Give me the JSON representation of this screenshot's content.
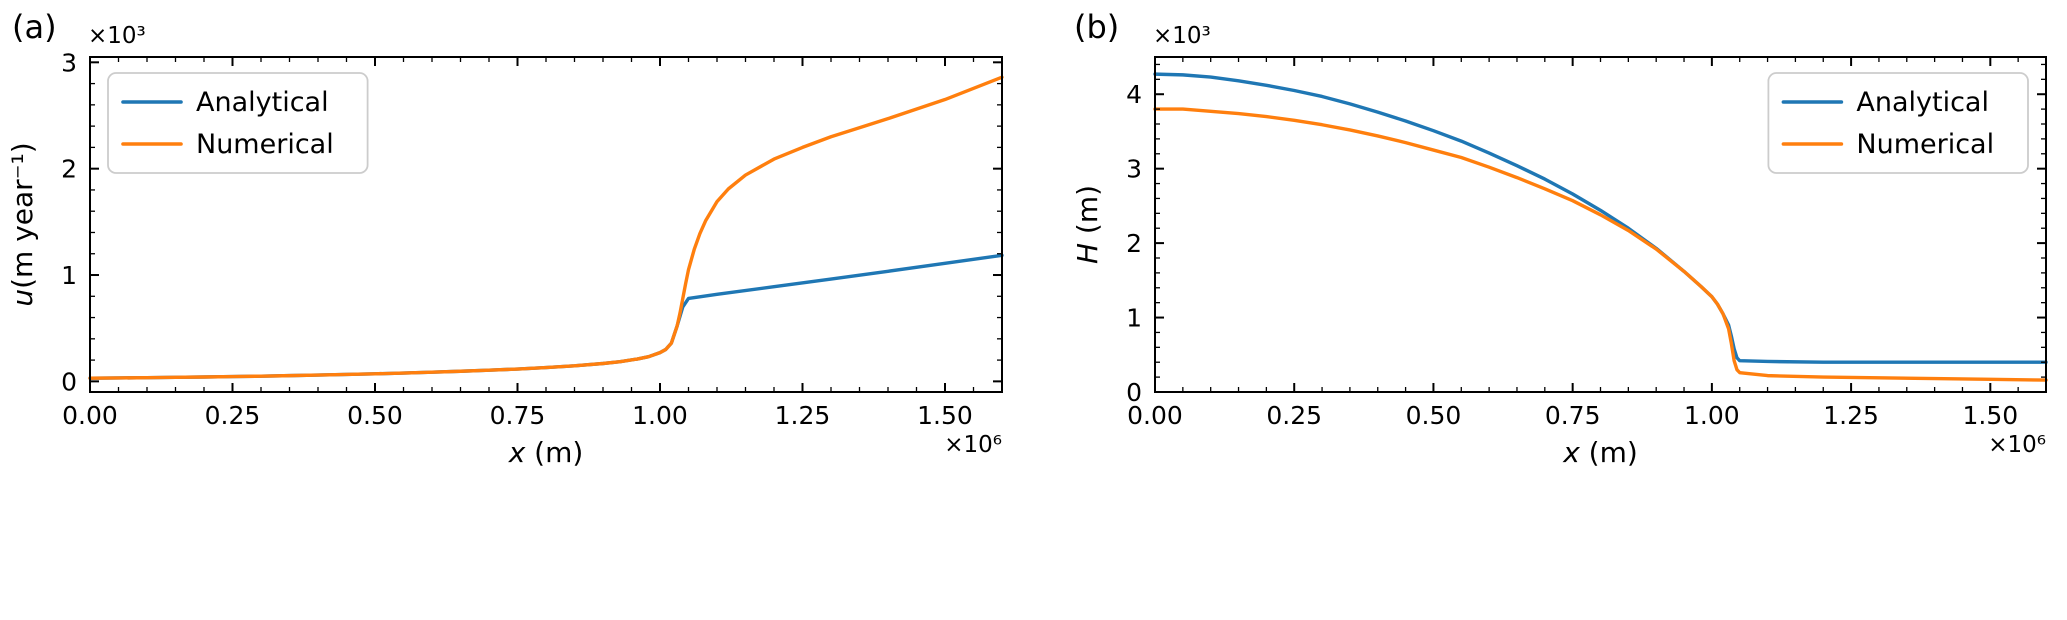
{
  "figure": {
    "background": "#ffffff",
    "text_color": "#000000",
    "frame_color": "#000000"
  },
  "chart_data": [
    {
      "type": "line",
      "panel_label": "(a)",
      "xlabel": {
        "var": "x",
        "unit": " (m)"
      },
      "ylabel": {
        "var": "u",
        "unit": "(m year⁻¹)"
      },
      "x_offset_text": "×10⁶",
      "y_offset_text": "×10³",
      "xlim": [
        0,
        1.6
      ],
      "ylim": [
        -0.1,
        3.05
      ],
      "xticks": [
        0.0,
        0.25,
        0.5,
        0.75,
        1.0,
        1.25,
        1.5
      ],
      "xtick_labels": [
        "0.00",
        "0.25",
        "0.50",
        "0.75",
        "1.00",
        "1.25",
        "1.50"
      ],
      "yticks": [
        0,
        1,
        2,
        3
      ],
      "ytick_labels": [
        "0",
        "1",
        "2",
        "3"
      ],
      "x_minor_step": 0.05,
      "y_minor_step": 0.2,
      "grid": false,
      "legend_position": "upper left",
      "series": [
        {
          "name": "Analytical",
          "color": "#1f77b4",
          "x": [
            0.0,
            0.05,
            0.1,
            0.15,
            0.2,
            0.25,
            0.3,
            0.35,
            0.4,
            0.45,
            0.5,
            0.55,
            0.6,
            0.65,
            0.7,
            0.75,
            0.8,
            0.85,
            0.9,
            0.93,
            0.96,
            0.98,
            1.0,
            1.01,
            1.02,
            1.03,
            1.04,
            1.05,
            1.1,
            1.2,
            1.3,
            1.4,
            1.5,
            1.6
          ],
          "y": [
            0.03,
            0.032,
            0.035,
            0.038,
            0.041,
            0.045,
            0.049,
            0.054,
            0.059,
            0.065,
            0.071,
            0.078,
            0.086,
            0.095,
            0.105,
            0.116,
            0.13,
            0.146,
            0.168,
            0.185,
            0.21,
            0.232,
            0.27,
            0.3,
            0.36,
            0.52,
            0.7,
            0.78,
            0.818,
            0.89,
            0.962,
            1.035,
            1.11,
            1.185
          ]
        },
        {
          "name": "Numerical",
          "color": "#ff7f0e",
          "x": [
            0.0,
            0.05,
            0.1,
            0.15,
            0.2,
            0.25,
            0.3,
            0.35,
            0.4,
            0.45,
            0.5,
            0.55,
            0.6,
            0.65,
            0.7,
            0.75,
            0.8,
            0.85,
            0.9,
            0.93,
            0.96,
            0.98,
            1.0,
            1.01,
            1.02,
            1.03,
            1.035,
            1.04,
            1.045,
            1.05,
            1.06,
            1.07,
            1.08,
            1.1,
            1.12,
            1.15,
            1.2,
            1.25,
            1.3,
            1.4,
            1.5,
            1.6
          ],
          "y": [
            0.03,
            0.032,
            0.035,
            0.038,
            0.041,
            0.045,
            0.049,
            0.054,
            0.059,
            0.065,
            0.071,
            0.078,
            0.086,
            0.095,
            0.105,
            0.116,
            0.13,
            0.146,
            0.168,
            0.185,
            0.21,
            0.232,
            0.27,
            0.3,
            0.36,
            0.52,
            0.64,
            0.78,
            0.92,
            1.05,
            1.24,
            1.39,
            1.51,
            1.69,
            1.81,
            1.94,
            2.09,
            2.2,
            2.3,
            2.47,
            2.65,
            2.86
          ]
        }
      ]
    },
    {
      "type": "line",
      "panel_label": "(b)",
      "xlabel": {
        "var": "x",
        "unit": " (m)"
      },
      "ylabel": {
        "var": "H",
        "unit": " (m)"
      },
      "x_offset_text": "×10⁶",
      "y_offset_text": "×10³",
      "xlim": [
        0,
        1.6
      ],
      "ylim": [
        0,
        4.5
      ],
      "xticks": [
        0.0,
        0.25,
        0.5,
        0.75,
        1.0,
        1.25,
        1.5
      ],
      "xtick_labels": [
        "0.00",
        "0.25",
        "0.50",
        "0.75",
        "1.00",
        "1.25",
        "1.50"
      ],
      "yticks": [
        0,
        1,
        2,
        3,
        4
      ],
      "ytick_labels": [
        "0",
        "1",
        "2",
        "3",
        "4"
      ],
      "x_minor_step": 0.05,
      "y_minor_step": 0.2,
      "grid": false,
      "legend_position": "upper right",
      "series": [
        {
          "name": "Analytical",
          "color": "#1f77b4",
          "x": [
            0.0,
            0.05,
            0.1,
            0.15,
            0.2,
            0.25,
            0.3,
            0.35,
            0.4,
            0.45,
            0.5,
            0.55,
            0.6,
            0.65,
            0.7,
            0.75,
            0.8,
            0.85,
            0.9,
            0.95,
            0.98,
            1.0,
            1.01,
            1.02,
            1.03,
            1.035,
            1.04,
            1.045,
            1.05,
            1.1,
            1.2,
            1.3,
            1.4,
            1.5,
            1.6
          ],
          "y": [
            4.27,
            4.26,
            4.23,
            4.18,
            4.12,
            4.05,
            3.97,
            3.87,
            3.76,
            3.64,
            3.51,
            3.37,
            3.21,
            3.04,
            2.86,
            2.66,
            2.44,
            2.2,
            1.93,
            1.62,
            1.42,
            1.28,
            1.18,
            1.05,
            0.9,
            0.75,
            0.58,
            0.46,
            0.42,
            0.41,
            0.4,
            0.4,
            0.4,
            0.4,
            0.4
          ]
        },
        {
          "name": "Numerical",
          "color": "#ff7f0e",
          "x": [
            0.0,
            0.05,
            0.1,
            0.15,
            0.2,
            0.25,
            0.3,
            0.35,
            0.4,
            0.45,
            0.5,
            0.55,
            0.6,
            0.65,
            0.7,
            0.75,
            0.8,
            0.85,
            0.9,
            0.95,
            0.98,
            1.0,
            1.01,
            1.02,
            1.03,
            1.035,
            1.04,
            1.045,
            1.05,
            1.1,
            1.2,
            1.3,
            1.4,
            1.5,
            1.6
          ],
          "y": [
            3.8,
            3.8,
            3.77,
            3.74,
            3.7,
            3.65,
            3.59,
            3.52,
            3.44,
            3.35,
            3.25,
            3.15,
            3.02,
            2.88,
            2.73,
            2.57,
            2.38,
            2.17,
            1.92,
            1.62,
            1.42,
            1.28,
            1.18,
            1.05,
            0.85,
            0.65,
            0.42,
            0.3,
            0.26,
            0.22,
            0.2,
            0.19,
            0.18,
            0.17,
            0.16
          ]
        }
      ]
    }
  ]
}
